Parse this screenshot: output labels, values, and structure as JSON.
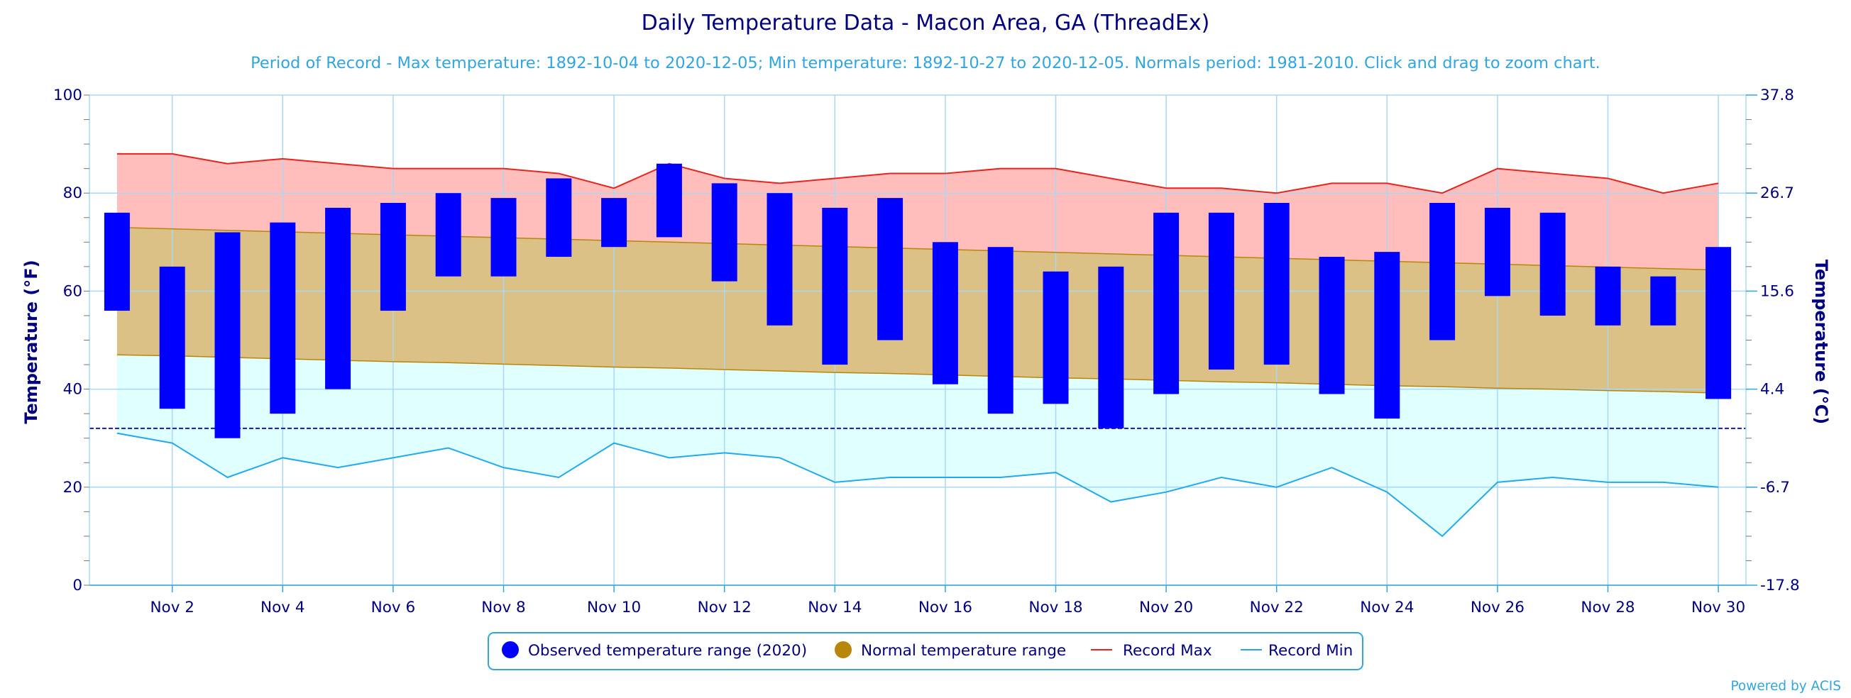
{
  "chart_data": {
    "type": "bar",
    "title": "Daily Temperature Data - Macon Area, GA (ThreadEx)",
    "subtitle": "Period of Record - Max temperature: 1892-10-04 to 2020-12-05; Min temperature: 1892-10-27 to 2020-12-05. Normals period: 1981-2010. Click and drag to zoom chart.",
    "ylabel_left": "Temperature (°F)",
    "ylabel_right": "Temperature (°C)",
    "ylim": [
      0,
      100
    ],
    "y_ticks": [
      0,
      20,
      40,
      60,
      80,
      100
    ],
    "y_right_ticks": [
      "-17.8",
      "-6.7",
      "4.4",
      "15.6",
      "26.7",
      "37.8"
    ],
    "x_tick_days": [
      2,
      4,
      6,
      8,
      10,
      12,
      14,
      16,
      18,
      20,
      22,
      24,
      26,
      28,
      30
    ],
    "x_tick_labels": [
      "Nov 2",
      "Nov 4",
      "Nov 6",
      "Nov 8",
      "Nov 10",
      "Nov 12",
      "Nov 14",
      "Nov 16",
      "Nov 18",
      "Nov 20",
      "Nov 22",
      "Nov 24",
      "Nov 26",
      "Nov 28",
      "Nov 30"
    ],
    "freezing_line": 32,
    "days": [
      1,
      2,
      3,
      4,
      5,
      6,
      7,
      8,
      9,
      10,
      11,
      12,
      13,
      14,
      15,
      16,
      17,
      18,
      19,
      20,
      21,
      22,
      23,
      24,
      25,
      26,
      27,
      28,
      29,
      30
    ],
    "series": [
      {
        "name": "Observed temperature range (2020)",
        "color": "#0000ff",
        "low": [
          56,
          36,
          30,
          35,
          40,
          56,
          63,
          63,
          67,
          69,
          71,
          62,
          53,
          45,
          50,
          41,
          35,
          37,
          32,
          39,
          44,
          45,
          39,
          34,
          50,
          59,
          55,
          53,
          53,
          38
        ],
        "high": [
          76,
          65,
          72,
          74,
          77,
          78,
          80,
          79,
          83,
          79,
          86,
          82,
          80,
          77,
          79,
          70,
          69,
          64,
          65,
          76,
          76,
          78,
          67,
          68,
          78,
          77,
          76,
          65,
          63,
          69
        ]
      },
      {
        "name": "Normal temperature range",
        "color": "#b8860b",
        "low": [
          47.0,
          46.8,
          46.5,
          46.2,
          45.9,
          45.6,
          45.4,
          45.1,
          44.8,
          44.5,
          44.3,
          44.0,
          43.7,
          43.4,
          43.2,
          42.9,
          42.6,
          42.3,
          42.1,
          41.8,
          41.5,
          41.3,
          41.0,
          40.7,
          40.5,
          40.2,
          40.0,
          39.7,
          39.5,
          39.2
        ],
        "high": [
          73.0,
          72.7,
          72.4,
          72.1,
          71.8,
          71.5,
          71.2,
          70.9,
          70.6,
          70.3,
          70.0,
          69.7,
          69.4,
          69.1,
          68.8,
          68.5,
          68.2,
          67.9,
          67.6,
          67.3,
          67.0,
          66.7,
          66.4,
          66.1,
          65.8,
          65.5,
          65.2,
          64.9,
          64.6,
          64.3
        ]
      },
      {
        "name": "Record Max",
        "color": "#e8241e",
        "values": [
          88,
          88,
          86,
          87,
          86,
          85,
          85,
          85,
          84,
          81,
          86,
          83,
          82,
          83,
          84,
          84,
          85,
          85,
          83,
          81,
          81,
          80,
          82,
          82,
          80,
          85,
          84,
          83,
          80,
          82
        ]
      },
      {
        "name": "Record Min",
        "color": "#22aaee",
        "values": [
          31,
          29,
          22,
          26,
          24,
          26,
          28,
          24,
          22,
          29,
          26,
          27,
          26,
          21,
          22,
          22,
          22,
          23,
          17,
          19,
          22,
          20,
          24,
          19,
          10,
          21,
          22,
          21,
          21,
          20
        ]
      }
    ],
    "legend_position": "bottom-center",
    "grid": true
  },
  "legend": {
    "observed": "Observed temperature range (2020)",
    "normal": "Normal temperature range",
    "record_max": "Record Max",
    "record_min": "Record Min"
  },
  "credit": "Powered by ACIS"
}
